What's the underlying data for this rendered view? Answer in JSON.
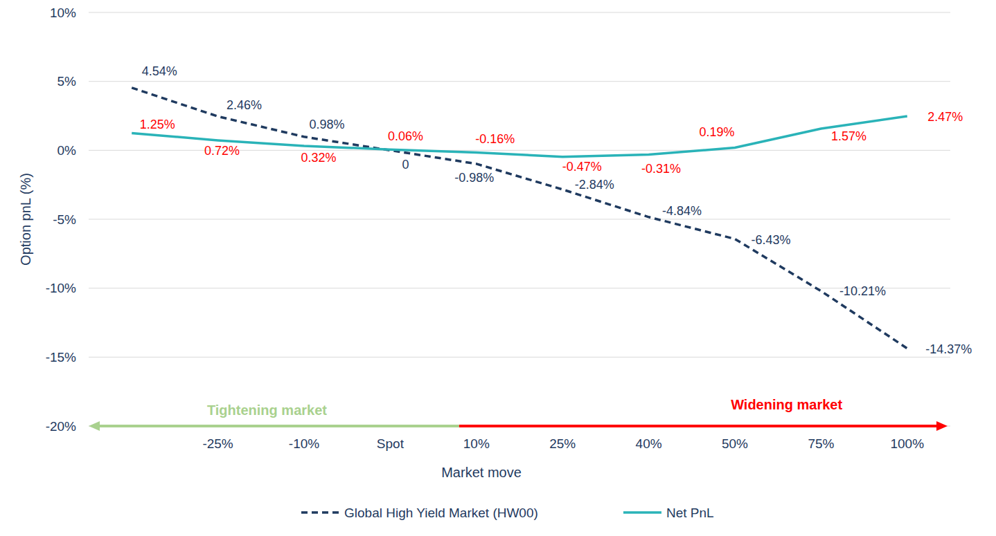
{
  "chart_data": {
    "type": "line",
    "x_label": "Market move",
    "y_label": "Option pnL (%)",
    "categories": [
      null,
      "-25%",
      "-10%",
      "Spot",
      "10%",
      "25%",
      "40%",
      "50%",
      "75%",
      "100%"
    ],
    "series": [
      {
        "name": "Global High Yield Market (HW00)",
        "color": "#1f3a5f",
        "line_style": "dashed",
        "values": [
          4.54,
          2.46,
          0.98,
          0,
          -0.98,
          -2.84,
          -4.84,
          -6.43,
          -10.21,
          -14.37
        ],
        "value_labels": [
          "4.54%",
          "2.46%",
          "0.98%",
          "0",
          "-0.98%",
          "-2.84%",
          "-4.84%",
          "-6.43%",
          "-10.21%",
          "-14.37%"
        ]
      },
      {
        "name": "Net PnL",
        "color": "#2ab3b8",
        "line_style": "solid",
        "values": [
          1.25,
          0.72,
          0.32,
          0.06,
          -0.16,
          -0.47,
          -0.31,
          0.19,
          1.57,
          2.47
        ],
        "value_labels": [
          "1.25%",
          "0.72%",
          "0.32%",
          "0.06%",
          "-0.16%",
          "-0.47%",
          "-0.31%",
          "0.19%",
          "1.57%",
          "2.47%"
        ]
      }
    ],
    "ylim": [
      -20,
      10
    ],
    "yticks": [
      {
        "value": -20,
        "label": "-20%"
      },
      {
        "value": -15,
        "label": "-15%"
      },
      {
        "value": -10,
        "label": "-10%"
      },
      {
        "value": -5,
        "label": "-5%"
      },
      {
        "value": 0,
        "label": "0%"
      },
      {
        "value": 5,
        "label": "5%"
      },
      {
        "value": 10,
        "label": "10%"
      }
    ],
    "grid": true,
    "data_labels": true,
    "legend": "bottom",
    "annotations": [
      {
        "text": "Tightening market",
        "color": "#a9d18e"
      },
      {
        "text": "Widening market",
        "color": "#ff0000"
      }
    ]
  }
}
